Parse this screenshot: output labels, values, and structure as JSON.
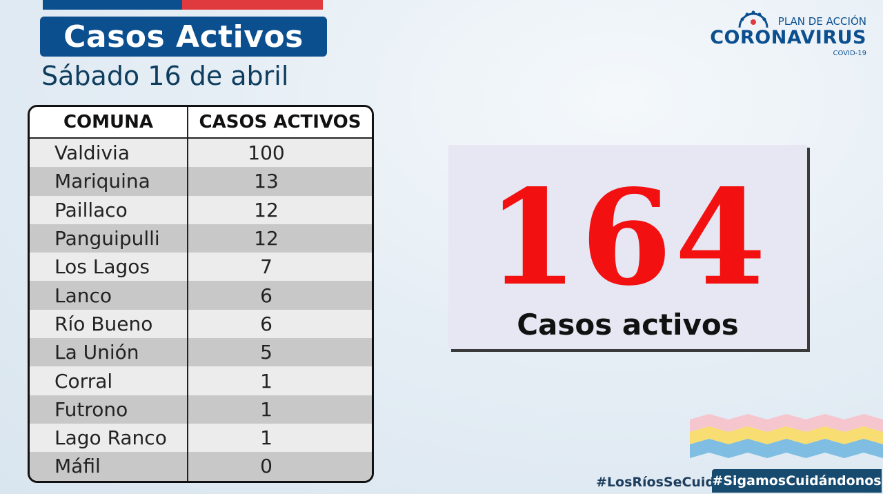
{
  "header": {
    "title": "Casos Activos",
    "date": "Sábado 16 de abril"
  },
  "logo": {
    "line1": "PLAN DE ACCIÓN",
    "line2": "CORONAVIRUS",
    "line3": "COVID-19"
  },
  "table": {
    "headers": [
      "COMUNA",
      "CASOS ACTIVOS"
    ],
    "rows": [
      {
        "comuna": "Valdivia",
        "casos": "100"
      },
      {
        "comuna": "Mariquina",
        "casos": "13"
      },
      {
        "comuna": "Paillaco",
        "casos": "12"
      },
      {
        "comuna": "Panguipulli",
        "casos": "12"
      },
      {
        "comuna": "Los Lagos",
        "casos": "7"
      },
      {
        "comuna": "Lanco",
        "casos": "6"
      },
      {
        "comuna": "Río Bueno",
        "casos": "6"
      },
      {
        "comuna": "La Unión",
        "casos": "5"
      },
      {
        "comuna": "Corral",
        "casos": "1"
      },
      {
        "comuna": "Futrono",
        "casos": "1"
      },
      {
        "comuna": "Lago Ranco",
        "casos": "1"
      },
      {
        "comuna": "Máfil",
        "casos": "0"
      }
    ]
  },
  "total": {
    "value": "164",
    "label": "Casos activos"
  },
  "footer": {
    "tag1": "#LosRíosSeCuida",
    "tag2": "#SigamosCuidándonos"
  },
  "colors": {
    "brand_blue": "#0b4f8f",
    "flag_red": "#e03a3e",
    "total_red": "#f21010"
  }
}
